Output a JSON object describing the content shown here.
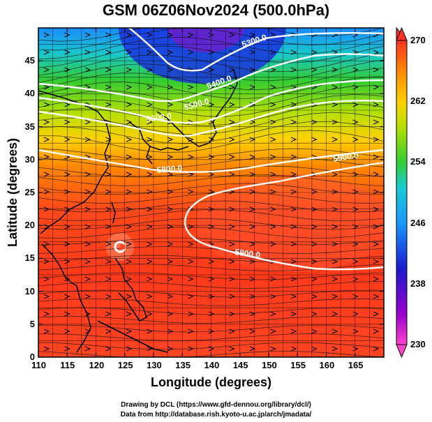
{
  "title": "GSM 06Z06Nov2024 (500.0hPa)",
  "xaxis": {
    "label": "Longitude (degrees)",
    "ticks": [
      "110",
      "115",
      "120",
      "125",
      "130",
      "135",
      "140",
      "145",
      "150",
      "155",
      "160",
      "165"
    ]
  },
  "yaxis": {
    "label": "Latitude  (degrees)",
    "ticks": [
      "0",
      "5",
      "10",
      "15",
      "20",
      "25",
      "30",
      "35",
      "40",
      "45"
    ]
  },
  "extent": {
    "lon": [
      110,
      170
    ],
    "lat": [
      0,
      50
    ]
  },
  "colorbar": {
    "ticks": [
      "230",
      "238",
      "246",
      "254",
      "262",
      "270"
    ],
    "range": [
      230,
      270
    ]
  },
  "contours": [
    {
      "label": "5300.0"
    },
    {
      "label": "5400.0"
    },
    {
      "label": "5500.0"
    },
    {
      "label": "5600.0"
    },
    {
      "label": "5800.0"
    },
    {
      "label": "5900.0"
    },
    {
      "label": "5900.0"
    }
  ],
  "credits": [
    "Drawing by DCL (https://www.gfd-dennou.org/library/dcl/)",
    "Data from http://database.rish.kyoto-u.ac.jp/arch/jmadata/"
  ]
}
